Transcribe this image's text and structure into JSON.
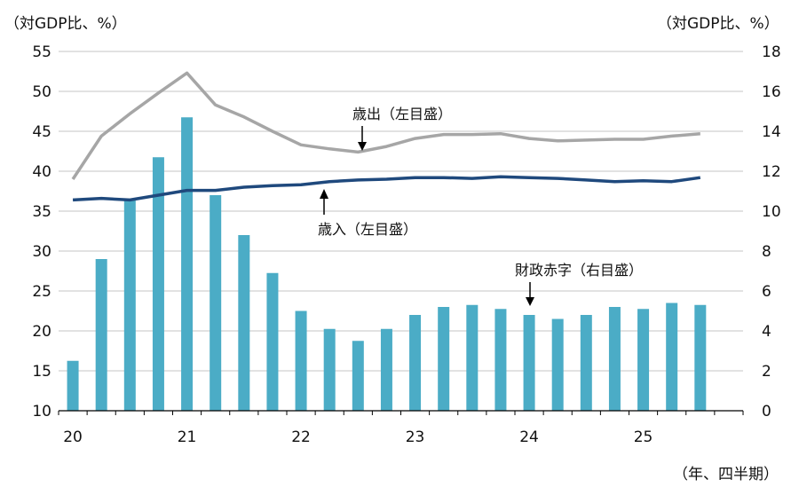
{
  "chart_data": {
    "type": "bar+line",
    "left_axis_title": "（対GDP比、%）",
    "right_axis_title": "（対GDP比、%）",
    "x_axis_title": "（年、四半期）",
    "left_ylim": [
      10,
      55
    ],
    "left_ticks": [
      10,
      15,
      20,
      25,
      30,
      35,
      40,
      45,
      50,
      55
    ],
    "right_ylim": [
      0,
      18
    ],
    "right_ticks": [
      0,
      2,
      4,
      6,
      8,
      10,
      12,
      14,
      16,
      18
    ],
    "grid": true,
    "x_year_labels": [
      "20",
      "21",
      "22",
      "23",
      "24",
      "25"
    ],
    "quarters": [
      "20Q1",
      "20Q2",
      "20Q3",
      "20Q4",
      "21Q1",
      "21Q2",
      "21Q3",
      "21Q4",
      "22Q1",
      "22Q2",
      "22Q3",
      "22Q4",
      "23Q1",
      "23Q2",
      "23Q3",
      "23Q4",
      "24Q1",
      "24Q2",
      "24Q3",
      "24Q4",
      "25Q1",
      "25Q2",
      "25Q3"
    ],
    "series": [
      {
        "name": "財政赤字",
        "label": "財政赤字（右目盛）",
        "type": "bar",
        "axis": "right",
        "color": "#4bacc6",
        "values": [
          2.5,
          7.6,
          10.6,
          12.7,
          14.7,
          10.8,
          8.8,
          6.9,
          5.0,
          4.1,
          3.5,
          4.1,
          4.8,
          5.2,
          5.3,
          5.1,
          4.8,
          4.6,
          4.8,
          5.2,
          5.1,
          5.4,
          5.3
        ]
      },
      {
        "name": "歳出",
        "label": "歳出（左目盛）",
        "type": "line",
        "axis": "left",
        "color": "#a6a6a6",
        "values": [
          39.0,
          44.4,
          47.2,
          49.8,
          52.3,
          48.3,
          46.8,
          45.0,
          43.3,
          42.8,
          42.4,
          43.1,
          44.1,
          44.6,
          44.6,
          44.7,
          44.1,
          43.8,
          43.9,
          44.0,
          44.0,
          44.4,
          44.7
        ]
      },
      {
        "name": "歳入",
        "label": "歳入（左目盛）",
        "type": "line",
        "axis": "left",
        "color": "#1f497d",
        "values": [
          36.4,
          36.6,
          36.4,
          37.0,
          37.6,
          37.6,
          38.0,
          38.2,
          38.3,
          38.7,
          38.9,
          39.0,
          39.2,
          39.2,
          39.1,
          39.3,
          39.2,
          39.1,
          38.9,
          38.7,
          38.8,
          38.7,
          39.2
        ]
      }
    ]
  }
}
